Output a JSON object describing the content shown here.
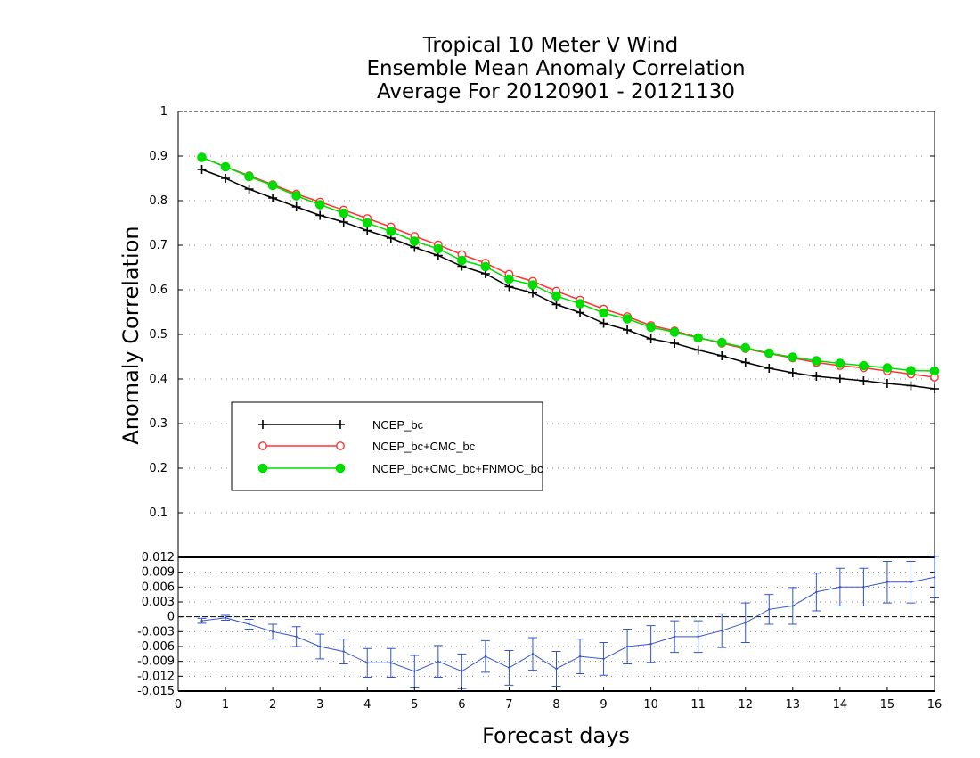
{
  "chart_data": [
    {
      "type": "line",
      "title": [
        "Tropical 10 Meter V Wind",
        "Ensemble Mean Anomaly Correlation",
        "Average For 20120901 - 20121130"
      ],
      "xlabel": "Forecast days",
      "ylabel": "Anomaly Correlation",
      "xlim": [
        0,
        16
      ],
      "ylim": [
        0,
        1
      ],
      "x_ticks": [
        "0",
        "1",
        "2",
        "3",
        "4",
        "5",
        "6",
        "7",
        "8",
        "9",
        "10",
        "11",
        "12",
        "13",
        "14",
        "15",
        "16"
      ],
      "y_ticks": [
        "0.1",
        "0.2",
        "0.3",
        "0.4",
        "0.5",
        "0.6",
        "0.7",
        "0.8",
        "0.9",
        "1"
      ],
      "grid": true,
      "legend_placement": "lower-left",
      "x": [
        0.5,
        1,
        1.5,
        2,
        2.5,
        3,
        3.5,
        4,
        4.5,
        5,
        5.5,
        6,
        6.5,
        7,
        7.5,
        8,
        8.5,
        9,
        9.5,
        10,
        10.5,
        11,
        11.5,
        12,
        12.5,
        13,
        13.5,
        14,
        14.5,
        15,
        15.5,
        16
      ],
      "series": [
        {
          "name": "NCEP_bc",
          "color": "#000000",
          "marker": "plus",
          "values": [
            0.87,
            0.85,
            0.826,
            0.806,
            0.786,
            0.767,
            0.752,
            0.733,
            0.716,
            0.695,
            0.677,
            0.653,
            0.636,
            0.607,
            0.593,
            0.567,
            0.549,
            0.525,
            0.51,
            0.49,
            0.48,
            0.465,
            0.452,
            0.437,
            0.424,
            0.414,
            0.406,
            0.401,
            0.396,
            0.39,
            0.385,
            0.378
          ]
        },
        {
          "name": "NCEP_bc+CMC_bc",
          "color": "#ff3333",
          "marker": "open-circle",
          "values": [
            0.897,
            0.876,
            0.856,
            0.836,
            0.815,
            0.797,
            0.779,
            0.76,
            0.741,
            0.72,
            0.701,
            0.679,
            0.66,
            0.635,
            0.619,
            0.597,
            0.577,
            0.557,
            0.54,
            0.52,
            0.508,
            0.493,
            0.48,
            0.468,
            0.457,
            0.447,
            0.437,
            0.43,
            0.425,
            0.418,
            0.411,
            0.404
          ]
        },
        {
          "name": "NCEP_bc+CMC_bc+FNMOC_bc",
          "color": "#00dd00",
          "marker": "filled-circle",
          "values": [
            0.897,
            0.876,
            0.854,
            0.834,
            0.811,
            0.791,
            0.772,
            0.75,
            0.731,
            0.709,
            0.692,
            0.666,
            0.652,
            0.624,
            0.611,
            0.586,
            0.569,
            0.548,
            0.535,
            0.516,
            0.505,
            0.492,
            0.482,
            0.47,
            0.458,
            0.449,
            0.441,
            0.435,
            0.43,
            0.425,
            0.419,
            0.418
          ]
        }
      ]
    },
    {
      "type": "line",
      "xlim": [
        0,
        16
      ],
      "ylim": [
        -0.015,
        0.012
      ],
      "y_ticks": [
        "0.012",
        "0.009",
        "0.006",
        "0.003",
        "0",
        "-0.003",
        "-0.006",
        "-0.009",
        "-0.012",
        "-0.015"
      ],
      "grid": true,
      "series": [
        {
          "color": "#3355cc",
          "error_bars": true,
          "x": [
            0.5,
            1,
            1.5,
            2,
            2.5,
            3,
            3.5,
            4,
            4.5,
            5,
            5.5,
            6,
            6.5,
            7,
            7.5,
            8,
            8.5,
            9,
            9.5,
            10,
            10.5,
            11,
            11.5,
            12,
            12.5,
            13,
            13.5,
            14,
            14.5,
            15,
            15.5,
            16
          ],
          "values": [
            -0.0008,
            -0.0002,
            -0.0015,
            -0.003,
            -0.004,
            -0.006,
            -0.007,
            -0.0093,
            -0.0093,
            -0.011,
            -0.009,
            -0.011,
            -0.008,
            -0.0103,
            -0.0075,
            -0.0105,
            -0.008,
            -0.0085,
            -0.006,
            -0.0055,
            -0.004,
            -0.004,
            -0.0028,
            -0.0012,
            0.0015,
            0.0022,
            0.005,
            0.006,
            0.006,
            0.007,
            0.007,
            0.008
          ],
          "err_low": [
            -0.0013,
            -0.0007,
            -0.0025,
            -0.0045,
            -0.006,
            -0.0085,
            -0.0095,
            -0.0122,
            -0.0122,
            -0.0142,
            -0.0122,
            -0.0145,
            -0.0112,
            -0.0138,
            -0.0108,
            -0.014,
            -0.0115,
            -0.0118,
            -0.0095,
            -0.0092,
            -0.0072,
            -0.0072,
            -0.0062,
            -0.0052,
            -0.0015,
            -0.0015,
            0.0012,
            0.0022,
            0.0022,
            0.0028,
            0.0028,
            0.0038
          ],
          "err_high": [
            -0.0003,
            0.0003,
            -0.0005,
            -0.0015,
            -0.002,
            -0.0035,
            -0.0045,
            -0.0064,
            -0.0064,
            -0.0078,
            -0.0058,
            -0.0075,
            -0.0048,
            -0.0068,
            -0.0042,
            -0.007,
            -0.0045,
            -0.0052,
            -0.0025,
            -0.0018,
            -0.0008,
            -0.0008,
            0.0006,
            0.0028,
            0.0045,
            0.0059,
            0.0088,
            0.0098,
            0.0098,
            0.0112,
            0.0112,
            0.0122
          ]
        }
      ]
    }
  ]
}
